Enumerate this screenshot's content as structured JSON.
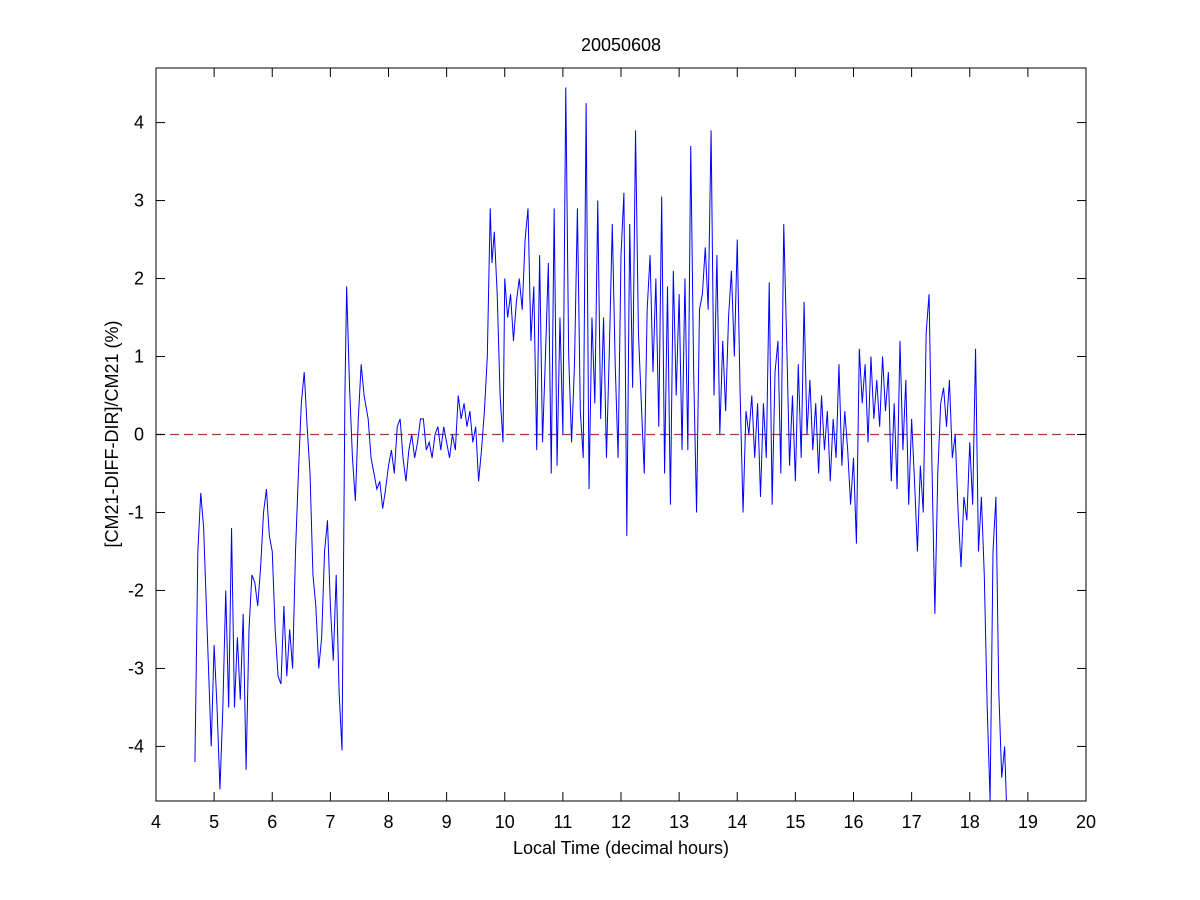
{
  "chart_data": {
    "type": "line",
    "title": "20050608",
    "x_label": "Local Time (decimal hours)",
    "y_label": "[CM21-DIFF-DIR]/CM21 (%)",
    "color": "#0000ff",
    "hline": {
      "y": 0,
      "color": "#b03a3a",
      "dashed": true
    },
    "xlim": [
      4,
      20
    ],
    "xticks": [
      4,
      5,
      6,
      7,
      8,
      9,
      10,
      11,
      12,
      13,
      14,
      15,
      16,
      17,
      18,
      19,
      20
    ],
    "ylim": [
      -4.7,
      4.7
    ],
    "yticks": [
      -4,
      -3,
      -2,
      -1,
      0,
      1,
      2,
      3,
      4
    ],
    "x": [
      4.67,
      4.72,
      4.77,
      4.82,
      4.88,
      4.95,
      5.0,
      5.05,
      5.1,
      5.15,
      5.2,
      5.25,
      5.3,
      5.35,
      5.4,
      5.45,
      5.5,
      5.55,
      5.6,
      5.65,
      5.7,
      5.75,
      5.8,
      5.85,
      5.9,
      5.95,
      6.0,
      6.05,
      6.1,
      6.15,
      6.2,
      6.25,
      6.3,
      6.35,
      6.4,
      6.45,
      6.5,
      6.55,
      6.6,
      6.65,
      6.7,
      6.75,
      6.8,
      6.85,
      6.9,
      6.95,
      7.0,
      7.05,
      7.1,
      7.15,
      7.2,
      7.25,
      7.28,
      7.33,
      7.38,
      7.43,
      7.48,
      7.53,
      7.58,
      7.65,
      7.7,
      7.75,
      7.8,
      7.85,
      7.9,
      7.95,
      8.0,
      8.05,
      8.1,
      8.15,
      8.2,
      8.25,
      8.3,
      8.35,
      8.4,
      8.45,
      8.5,
      8.55,
      8.6,
      8.65,
      8.7,
      8.75,
      8.8,
      8.85,
      8.9,
      8.95,
      9.0,
      9.05,
      9.1,
      9.15,
      9.2,
      9.25,
      9.3,
      9.35,
      9.4,
      9.45,
      9.5,
      9.55,
      9.6,
      9.65,
      9.7,
      9.75,
      9.78,
      9.82,
      9.87,
      9.92,
      9.97,
      10.0,
      10.05,
      10.1,
      10.15,
      10.2,
      10.25,
      10.3,
      10.35,
      10.4,
      10.45,
      10.5,
      10.55,
      10.6,
      10.65,
      10.7,
      10.75,
      10.8,
      10.85,
      10.9,
      10.95,
      11.0,
      11.05,
      11.1,
      11.15,
      11.2,
      11.25,
      11.3,
      11.35,
      11.4,
      11.45,
      11.5,
      11.55,
      11.6,
      11.65,
      11.7,
      11.75,
      11.8,
      11.85,
      11.9,
      11.95,
      12.0,
      12.05,
      12.1,
      12.15,
      12.2,
      12.25,
      12.3,
      12.35,
      12.4,
      12.45,
      12.5,
      12.55,
      12.6,
      12.65,
      12.7,
      12.75,
      12.8,
      12.85,
      12.9,
      12.95,
      13.0,
      13.05,
      13.1,
      13.15,
      13.2,
      13.25,
      13.3,
      13.35,
      13.4,
      13.45,
      13.5,
      13.55,
      13.6,
      13.65,
      13.7,
      13.75,
      13.8,
      13.85,
      13.9,
      13.95,
      14.0,
      14.05,
      14.1,
      14.15,
      14.2,
      14.25,
      14.3,
      14.35,
      14.4,
      14.45,
      14.5,
      14.55,
      14.6,
      14.65,
      14.7,
      14.75,
      14.8,
      14.85,
      14.9,
      14.95,
      15.0,
      15.05,
      15.1,
      15.15,
      15.2,
      15.25,
      15.3,
      15.35,
      15.4,
      15.45,
      15.5,
      15.55,
      15.6,
      15.65,
      15.7,
      15.75,
      15.8,
      15.85,
      15.9,
      15.95,
      16.0,
      16.05,
      16.1,
      16.15,
      16.2,
      16.25,
      16.3,
      16.35,
      16.4,
      16.45,
      16.5,
      16.55,
      16.6,
      16.65,
      16.7,
      16.75,
      16.8,
      16.85,
      16.9,
      16.95,
      17.0,
      17.05,
      17.1,
      17.15,
      17.2,
      17.25,
      17.3,
      17.35,
      17.4,
      17.45,
      17.5,
      17.55,
      17.6,
      17.65,
      17.7,
      17.75,
      17.8,
      17.85,
      17.9,
      17.95,
      18.0,
      18.05,
      18.1,
      18.15,
      18.2,
      18.25,
      18.3,
      18.35,
      18.4,
      18.45,
      18.5,
      18.55,
      18.6,
      18.63
    ],
    "values": [
      -4.2,
      -1.5,
      -0.75,
      -1.2,
      -2.5,
      -4.0,
      -2.7,
      -3.5,
      -4.55,
      -3.5,
      -2.0,
      -3.5,
      -1.2,
      -3.5,
      -2.6,
      -3.4,
      -2.3,
      -4.3,
      -2.5,
      -1.8,
      -1.9,
      -2.2,
      -1.7,
      -1.0,
      -0.7,
      -1.3,
      -1.5,
      -2.5,
      -3.1,
      -3.2,
      -2.2,
      -3.1,
      -2.5,
      -3.0,
      -1.5,
      -0.5,
      0.4,
      0.8,
      0.1,
      -0.5,
      -1.8,
      -2.2,
      -3.0,
      -2.6,
      -1.5,
      -1.1,
      -2.2,
      -2.9,
      -1.8,
      -3.3,
      -4.05,
      0.5,
      1.9,
      0.6,
      -0.3,
      -0.85,
      0.2,
      0.9,
      0.5,
      0.2,
      -0.3,
      -0.5,
      -0.7,
      -0.6,
      -0.95,
      -0.7,
      -0.4,
      -0.2,
      -0.5,
      0.1,
      0.2,
      -0.3,
      -0.6,
      -0.2,
      0.0,
      -0.3,
      -0.1,
      0.2,
      0.2,
      -0.2,
      -0.1,
      -0.3,
      0.0,
      0.1,
      -0.2,
      0.1,
      -0.1,
      -0.3,
      0.0,
      -0.2,
      0.5,
      0.2,
      0.4,
      0.1,
      0.3,
      -0.1,
      0.1,
      -0.6,
      -0.2,
      0.3,
      1.0,
      2.9,
      2.2,
      2.6,
      1.8,
      0.5,
      -0.1,
      2.0,
      1.5,
      1.8,
      1.2,
      1.7,
      2.0,
      1.6,
      2.5,
      2.9,
      1.2,
      1.9,
      -0.2,
      2.3,
      -0.1,
      1.0,
      2.2,
      -0.5,
      2.9,
      -0.4,
      1.5,
      0.0,
      4.45,
      1.0,
      -0.1,
      0.9,
      2.9,
      0.3,
      -0.3,
      4.25,
      -0.7,
      1.5,
      0.4,
      3.0,
      0.2,
      1.5,
      -0.3,
      1.1,
      2.7,
      0.9,
      -0.3,
      2.3,
      3.1,
      -1.3,
      2.7,
      0.6,
      3.9,
      1.3,
      0.4,
      -0.5,
      1.6,
      2.3,
      0.8,
      2.0,
      0.1,
      3.05,
      -0.5,
      1.9,
      -0.9,
      2.1,
      0.5,
      1.8,
      -0.2,
      2.0,
      -0.2,
      3.7,
      0.8,
      -1.0,
      1.6,
      1.8,
      2.4,
      1.6,
      3.9,
      0.5,
      2.3,
      0.0,
      1.2,
      0.3,
      1.5,
      2.1,
      1.0,
      2.5,
      0.5,
      -1.0,
      0.3,
      0.0,
      0.5,
      -0.3,
      0.4,
      -0.8,
      0.4,
      -0.3,
      1.95,
      -0.9,
      0.8,
      1.2,
      -0.5,
      2.7,
      1.2,
      -0.4,
      0.5,
      -0.6,
      0.9,
      -0.3,
      1.7,
      0.0,
      0.7,
      -0.2,
      0.4,
      -0.5,
      0.5,
      -0.2,
      0.3,
      -0.6,
      0.2,
      -0.3,
      0.9,
      -0.4,
      0.3,
      -0.2,
      -0.9,
      -0.3,
      -1.4,
      1.1,
      0.4,
      0.9,
      -0.1,
      1.0,
      0.2,
      0.7,
      0.1,
      1.0,
      0.3,
      0.8,
      -0.6,
      0.4,
      -0.7,
      1.2,
      -0.2,
      0.7,
      -0.9,
      0.2,
      -0.6,
      -1.5,
      -0.4,
      -1.0,
      1.3,
      1.8,
      -0.4,
      -2.3,
      -0.5,
      0.4,
      0.6,
      0.1,
      0.7,
      -0.3,
      0.0,
      -1.0,
      -1.7,
      -0.8,
      -1.1,
      -0.1,
      -0.9,
      1.1,
      -1.5,
      -0.8,
      -1.8,
      -3.5,
      -4.7,
      -1.5,
      -0.8,
      -3.3,
      -4.4,
      -4.0,
      -4.7
    ]
  }
}
